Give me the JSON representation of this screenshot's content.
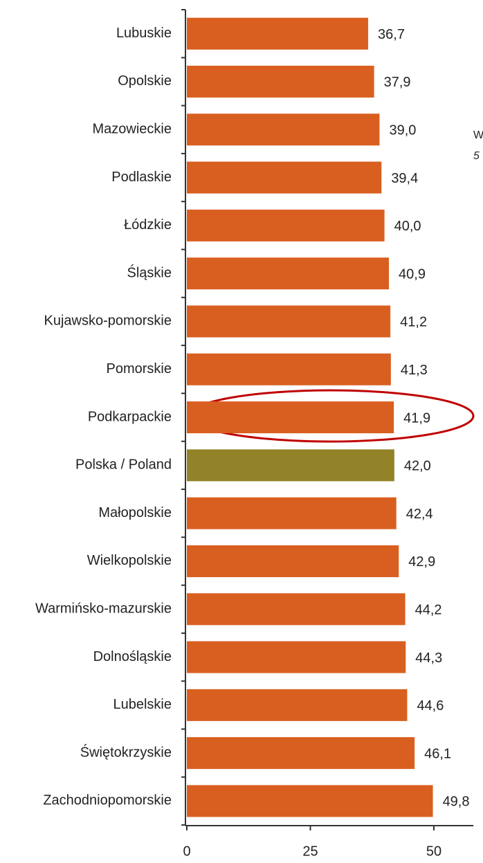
{
  "chart_data": {
    "type": "barh",
    "categories": [
      "Lubuskie",
      "Opolskie",
      "Mazowieckie",
      "Podlaskie",
      "Łódzkie",
      "Śląskie",
      "Kujawsko-pomorskie",
      "Pomorskie",
      "Podkarpackie",
      "Polska / Poland",
      "Małopolskie",
      "Wielkopolskie",
      "Warmińsko-mazurskie",
      "Dolnośląskie",
      "Lubelskie",
      "Świętokrzyskie",
      "Zachodniopomorskie"
    ],
    "values": [
      36.7,
      37.9,
      39.0,
      39.4,
      40.0,
      40.9,
      41.2,
      41.3,
      41.9,
      42.0,
      42.4,
      42.9,
      44.2,
      44.3,
      44.6,
      46.1,
      49.8
    ],
    "value_labels": [
      "36,7",
      "37,9",
      "39,0",
      "39,4",
      "40,0",
      "40,9",
      "41,2",
      "41,3",
      "41,9",
      "42,0",
      "42,4",
      "42,9",
      "44,2",
      "44,3",
      "44,6",
      "46,1",
      "49,8"
    ],
    "colors": [
      "#d95f20",
      "#d95f20",
      "#d95f20",
      "#d95f20",
      "#d95f20",
      "#d95f20",
      "#d95f20",
      "#d95f20",
      "#d95f20",
      "#928329",
      "#d95f20",
      "#d95f20",
      "#d95f20",
      "#d95f20",
      "#d95f20",
      "#d95f20",
      "#d95f20"
    ],
    "xlim": [
      0,
      58
    ],
    "xticks": [
      0,
      25,
      50
    ],
    "annotations": [
      "W",
      "5"
    ]
  }
}
